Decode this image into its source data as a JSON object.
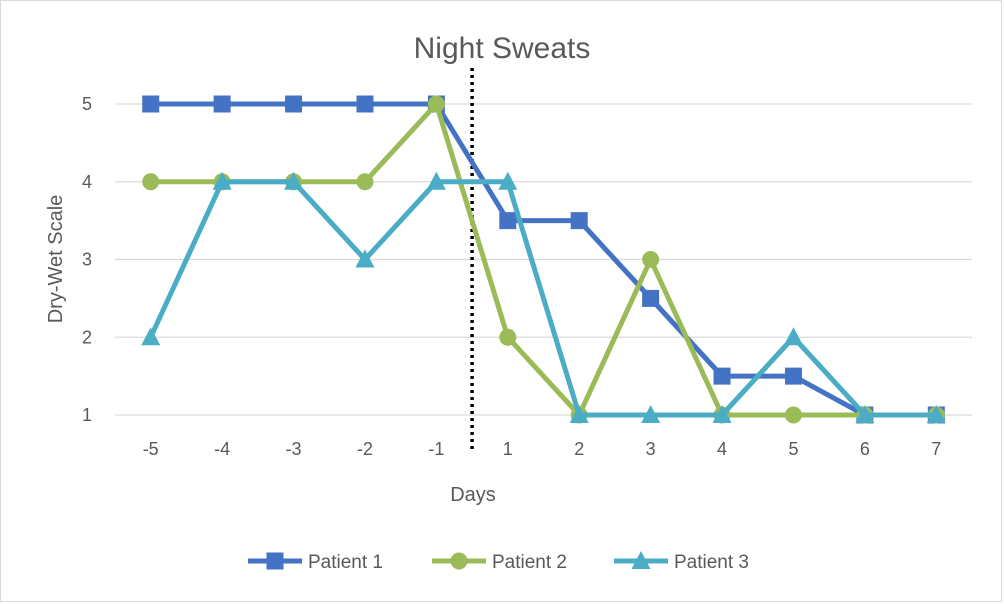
{
  "chart_data": {
    "type": "line",
    "title": "Night Sweats",
    "xlabel": "Days",
    "ylabel": "Dry-Wet Scale",
    "categories": [
      "-5",
      "-4",
      "-3",
      "-2",
      "-1",
      "1",
      "2",
      "3",
      "4",
      "5",
      "6",
      "7"
    ],
    "ylim": [
      1,
      5
    ],
    "yticks": [
      1,
      2,
      3,
      4,
      5
    ],
    "grid": true,
    "legend_position": "bottom",
    "series": [
      {
        "name": "Patient 1",
        "color": "#4472C4",
        "marker": "square",
        "values": [
          5,
          5,
          5,
          5,
          5,
          3.5,
          3.5,
          2.5,
          1.5,
          1.5,
          1,
          1
        ]
      },
      {
        "name": "Patient 2",
        "color": "#9BBB59",
        "marker": "circle",
        "values": [
          4,
          4,
          4,
          4,
          5,
          2,
          1,
          3,
          1,
          1,
          1,
          1
        ]
      },
      {
        "name": "Patient 3",
        "color": "#4BACC6",
        "marker": "triangle",
        "values": [
          2,
          4,
          4,
          3,
          4,
          4,
          1,
          1,
          1,
          2,
          1,
          1
        ]
      }
    ],
    "annotations": [
      {
        "type": "vertical-dotted-line",
        "between": [
          "-1",
          "1"
        ]
      }
    ]
  }
}
